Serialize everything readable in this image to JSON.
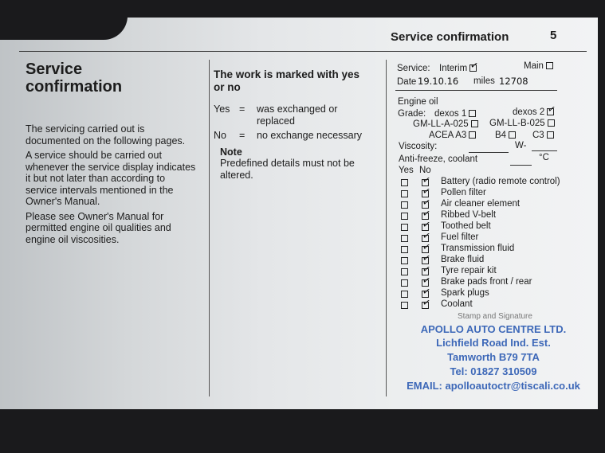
{
  "header": {
    "title": "Service confirmation",
    "page_number": "5"
  },
  "left": {
    "title": "Service confirmation",
    "paragraphs": [
      "The servicing carried out is documented on the following pages.",
      "A service should be carried out whenever the service display indicates it but not later than according to service intervals mentioned in the Owner's Manual.",
      "Please see Owner's Manual for permitted engine oil qualities and engine oil viscosities."
    ]
  },
  "middle": {
    "title": "The work is marked with yes or no",
    "yes_key": "Yes",
    "yes_eq": "=",
    "yes_text": "was exchanged or replaced",
    "no_key": "No",
    "no_eq": "=",
    "no_text": "no exchange necessary",
    "note_title": "Note",
    "note_text": "Predefined details must not be altered."
  },
  "right": {
    "service_label": "Service:",
    "interim": "Interim",
    "main": "Main",
    "interim_checked": true,
    "main_checked": false,
    "date_label": "Date",
    "date_value": "19.10.16",
    "miles_label": "miles",
    "miles_value": "12708",
    "engine_oil": "Engine oil",
    "grade_label": "Grade:",
    "grades": [
      {
        "label": "dexos 1",
        "checked": false
      },
      {
        "label": "dexos 2",
        "checked": true
      },
      {
        "label": "GM-LL-A-025",
        "checked": false
      },
      {
        "label": "GM-LL-B-025",
        "checked": false
      },
      {
        "label": "ACEA A3",
        "checked": false
      },
      {
        "label": "B4",
        "checked": false
      },
      {
        "label": "C3",
        "checked": false
      }
    ],
    "viscosity_label": "Viscosity:",
    "viscosity_sep": "W-",
    "antifreeze_label": "Anti-freeze, coolant",
    "antifreeze_unit": "°C",
    "yes_header": "Yes",
    "no_header": "No",
    "items": [
      {
        "label": "Battery (radio remote control)",
        "yes": false,
        "no": true
      },
      {
        "label": "Pollen filter",
        "yes": false,
        "no": true
      },
      {
        "label": "Air cleaner element",
        "yes": false,
        "no": true
      },
      {
        "label": "Ribbed V-belt",
        "yes": false,
        "no": true
      },
      {
        "label": "Toothed belt",
        "yes": false,
        "no": true
      },
      {
        "label": "Fuel filter",
        "yes": false,
        "no": true
      },
      {
        "label": "Transmission fluid",
        "yes": false,
        "no": true
      },
      {
        "label": "Brake fluid",
        "yes": false,
        "no": true
      },
      {
        "label": "Tyre repair kit",
        "yes": false,
        "no": true
      },
      {
        "label": "Brake pads front / rear",
        "yes": false,
        "no": true
      },
      {
        "label": "Spark plugs",
        "yes": false,
        "no": true
      },
      {
        "label": "Coolant",
        "yes": false,
        "no": true
      }
    ],
    "stamp_label": "Stamp and Signature",
    "stamp": {
      "line1": "APOLLO AUTO CENTRE LTD.",
      "line2": "Lichfield Road Ind. Est.",
      "line3": "Tamworth B79 7TA",
      "line4": "Tel: 01827 310509",
      "line5": "EMAIL: apolloautoctr@tiscali.co.uk",
      "color": "#3d68b8"
    }
  }
}
